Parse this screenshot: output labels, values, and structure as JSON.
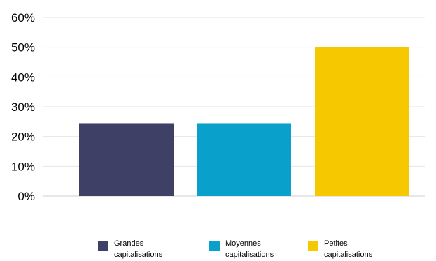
{
  "chart_data": {
    "type": "bar",
    "categories": [
      "Grandes capitalisations",
      "Moyennes capitalisations",
      "Petites capitalisations"
    ],
    "values": [
      24.5,
      24.5,
      50
    ],
    "colors": [
      "#3f4066",
      "#0aa0cc",
      "#f5c800"
    ],
    "ylim": [
      0,
      60
    ],
    "yticks": [
      "0%",
      "10%",
      "20%",
      "30%",
      "40%",
      "50%",
      "60%"
    ],
    "grid": true,
    "legend_position": "bottom"
  },
  "legend": [
    {
      "label": "Grandes capitalisations",
      "color": "#3f4066"
    },
    {
      "label": "Moyennes capitalisations",
      "color": "#0aa0cc"
    },
    {
      "label": "Petites capitalisations",
      "color": "#f5c800"
    }
  ]
}
